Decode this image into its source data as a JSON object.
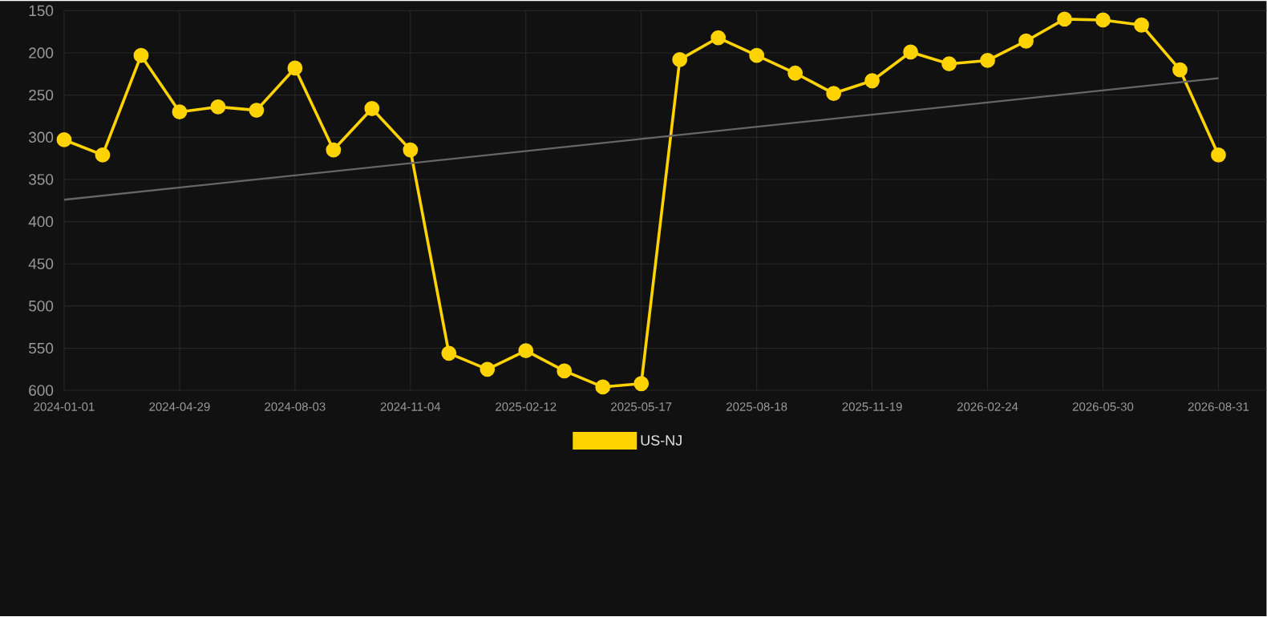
{
  "chart_data": {
    "type": "line",
    "categories": [
      "2024-01-01",
      null,
      null,
      "2024-04-29",
      null,
      null,
      "2024-08-03",
      null,
      null,
      "2024-11-04",
      null,
      null,
      "2025-02-12",
      null,
      null,
      "2025-05-17",
      null,
      null,
      "2025-08-18",
      null,
      null,
      "2025-11-19",
      null,
      null,
      "2026-02-24",
      null,
      null,
      "2026-05-30",
      null,
      null,
      "2026-08-31"
    ],
    "series": [
      {
        "name": "US-NJ",
        "color": "#ffd300",
        "marker": "circle",
        "values": [
          303,
          321,
          203,
          270,
          264,
          268,
          218,
          315,
          266,
          315,
          556,
          575,
          553,
          577,
          596,
          592,
          208,
          182,
          203,
          224,
          248,
          233,
          199,
          213,
          209,
          186,
          160,
          161,
          167,
          220,
          321
        ]
      },
      {
        "type": "line",
        "color": "#666666",
        "marker": "none",
        "values": [
          374,
          null,
          null,
          null,
          null,
          null,
          null,
          null,
          null,
          null,
          null,
          null,
          null,
          null,
          null,
          null,
          null,
          null,
          null,
          null,
          null,
          null,
          null,
          null,
          null,
          null,
          null,
          null,
          null,
          null,
          230
        ]
      }
    ],
    "ylim": [
      600,
      150
    ],
    "yticks": [
      150,
      200,
      250,
      300,
      350,
      400,
      450,
      500,
      550,
      600
    ],
    "grid": true,
    "legend": "bottom"
  }
}
